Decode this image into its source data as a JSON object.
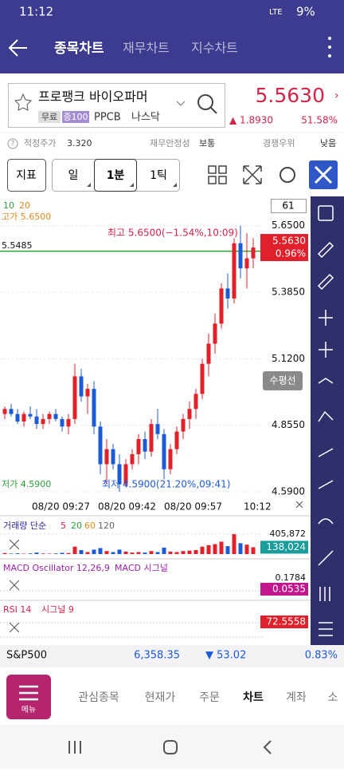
{
  "status_bar": {
    "time": "11:12",
    "network": "LTE",
    "battery": "9%"
  },
  "header": {
    "tabs": [
      "종목차트",
      "재무차트",
      "지수차트"
    ]
  },
  "stock": {
    "name": "프로팽크 바이오파머",
    "tags": [
      "무료",
      "증100"
    ],
    "ticker": "PPCB",
    "market": "나스닥",
    "price": "5.5630",
    "change": "▲ 1.8930",
    "change_pct": "51.58%"
  },
  "info": {
    "fair_price_label": "적정주가",
    "fair_price": "3.320",
    "stability_label": "재무안정성",
    "stability": "보통",
    "advantage_label": "경쟁우위",
    "advantage": "낮음"
  },
  "toolbar": {
    "buttons": [
      "지표",
      "일",
      "1분",
      "1틱"
    ]
  },
  "chart_data": {
    "type": "candlestick",
    "ma_labels": [
      "10",
      "20"
    ],
    "candles": [
      {
        "open": 4.9,
        "high": 4.93,
        "low": 4.88,
        "close": 4.92
      },
      {
        "open": 4.92,
        "high": 4.94,
        "low": 4.89,
        "close": 4.9
      },
      {
        "open": 4.9,
        "high": 4.92,
        "low": 4.86,
        "close": 4.87
      },
      {
        "open": 4.87,
        "high": 4.91,
        "low": 4.85,
        "close": 4.9
      },
      {
        "open": 4.9,
        "high": 4.93,
        "low": 4.88,
        "close": 4.89
      },
      {
        "open": 4.89,
        "high": 4.92,
        "low": 4.84,
        "close": 4.86
      },
      {
        "open": 4.86,
        "high": 4.9,
        "low": 4.84,
        "close": 4.88
      },
      {
        "open": 4.88,
        "high": 4.91,
        "low": 4.86,
        "close": 4.9
      },
      {
        "open": 4.9,
        "high": 4.92,
        "low": 4.87,
        "close": 4.88
      },
      {
        "open": 4.88,
        "high": 4.89,
        "low": 4.83,
        "close": 4.85
      },
      {
        "open": 4.85,
        "high": 4.9,
        "low": 4.82,
        "close": 4.88
      },
      {
        "open": 4.88,
        "high": 5.1,
        "low": 4.86,
        "close": 5.05
      },
      {
        "open": 5.05,
        "high": 5.08,
        "low": 4.95,
        "close": 4.97
      },
      {
        "open": 4.97,
        "high": 5.02,
        "low": 4.9,
        "close": 5.0
      },
      {
        "open": 5.0,
        "high": 5.03,
        "low": 4.82,
        "close": 4.85
      },
      {
        "open": 4.85,
        "high": 4.87,
        "low": 4.66,
        "close": 4.7
      },
      {
        "open": 4.7,
        "high": 4.8,
        "low": 4.62,
        "close": 4.76
      },
      {
        "open": 4.76,
        "high": 4.78,
        "low": 4.68,
        "close": 4.7
      },
      {
        "open": 4.7,
        "high": 4.74,
        "low": 4.59,
        "close": 4.62
      },
      {
        "open": 4.62,
        "high": 4.72,
        "low": 4.61,
        "close": 4.7
      },
      {
        "open": 4.7,
        "high": 4.76,
        "low": 4.68,
        "close": 4.74
      },
      {
        "open": 4.74,
        "high": 4.82,
        "low": 4.7,
        "close": 4.8
      },
      {
        "open": 4.8,
        "high": 4.83,
        "low": 4.72,
        "close": 4.75
      },
      {
        "open": 4.75,
        "high": 4.88,
        "low": 4.73,
        "close": 4.86
      },
      {
        "open": 4.86,
        "high": 4.92,
        "low": 4.8,
        "close": 4.82
      },
      {
        "open": 4.82,
        "high": 4.84,
        "low": 4.64,
        "close": 4.68
      },
      {
        "open": 4.68,
        "high": 4.78,
        "low": 4.66,
        "close": 4.76
      },
      {
        "open": 4.76,
        "high": 4.85,
        "low": 4.74,
        "close": 4.83
      },
      {
        "open": 4.83,
        "high": 4.9,
        "low": 4.8,
        "close": 4.88
      },
      {
        "open": 4.88,
        "high": 4.95,
        "low": 4.84,
        "close": 4.92
      },
      {
        "open": 4.92,
        "high": 5.0,
        "low": 4.88,
        "close": 4.98
      },
      {
        "open": 4.98,
        "high": 5.12,
        "low": 4.96,
        "close": 5.1
      },
      {
        "open": 5.1,
        "high": 5.22,
        "low": 5.05,
        "close": 5.18
      },
      {
        "open": 5.18,
        "high": 5.3,
        "low": 5.14,
        "close": 5.26
      },
      {
        "open": 5.26,
        "high": 5.42,
        "low": 5.24,
        "close": 5.4
      },
      {
        "open": 5.4,
        "high": 5.46,
        "low": 5.32,
        "close": 5.36
      },
      {
        "open": 5.36,
        "high": 5.6,
        "low": 5.34,
        "close": 5.58
      },
      {
        "open": 5.58,
        "high": 5.65,
        "low": 5.44,
        "close": 5.48
      },
      {
        "open": 5.48,
        "high": 5.62,
        "low": 5.4,
        "close": 5.52
      },
      {
        "open": 5.52,
        "high": 5.6,
        "low": 5.48,
        "close": 5.563
      }
    ],
    "ylim": [
      4.552,
      5.754
    ],
    "yticks": [
      {
        "value": 5.65,
        "label": "5.6500"
      },
      {
        "value": 5.385,
        "label": "5.3850"
      },
      {
        "value": 5.12,
        "label": "5.1200"
      },
      {
        "value": 4.855,
        "label": "4.8550"
      },
      {
        "value": 4.59,
        "label": "4.5900"
      }
    ],
    "count": "61",
    "high_label": "고가 5.6500",
    "ref_price": {
      "value": 5.5485,
      "label": "5.5485"
    },
    "max_note": "최고 5.6500(−1.54%,10:09)",
    "last_change": "0.96%",
    "horizontal_line_button": "수평선",
    "low_label": "저가 4.5900",
    "min_note": "최저 4.5900(21.20%,09:41)",
    "time_labels": [
      "08/20 09:27",
      "08/20 09:42",
      "08/20 09:57",
      "10:12"
    ],
    "volume_title": [
      "거래량 단순",
      "5",
      "20",
      "60",
      "120"
    ],
    "volume": [
      20000,
      10000,
      15000,
      8000,
      12000,
      30000,
      10000,
      8000,
      12000,
      25000,
      20000,
      150000,
      80000,
      40000,
      90000,
      120000,
      60000,
      40000,
      90000,
      50000,
      30000,
      40000,
      30000,
      60000,
      40000,
      130000,
      50000,
      40000,
      60000,
      70000,
      80000,
      150000,
      180000,
      200000,
      250000,
      160000,
      405872,
      220000,
      190000,
      138024
    ],
    "volume_ylim": [
      0,
      420000
    ],
    "volume_ticks": [
      {
        "value": 405872,
        "label": "405,872"
      }
    ],
    "volume_labels": [
      "138,024"
    ]
  },
  "macd": {
    "title": "MACD Oscillator 12,26,9",
    "signal": "MACD 시그널",
    "top": "0.1784",
    "last": "0.0535"
  },
  "rsi": {
    "title": "RSI 14",
    "signal": "시그널 9",
    "last": "72.5558"
  },
  "index": {
    "name": "S&P500",
    "value": "6,358.35",
    "change": "▼ 53.02",
    "pct": "0.83%"
  },
  "nav": {
    "menu": "메뉴",
    "tabs": [
      "관심종목",
      "현재가",
      "주문",
      "차트",
      "계좌",
      "소"
    ]
  }
}
